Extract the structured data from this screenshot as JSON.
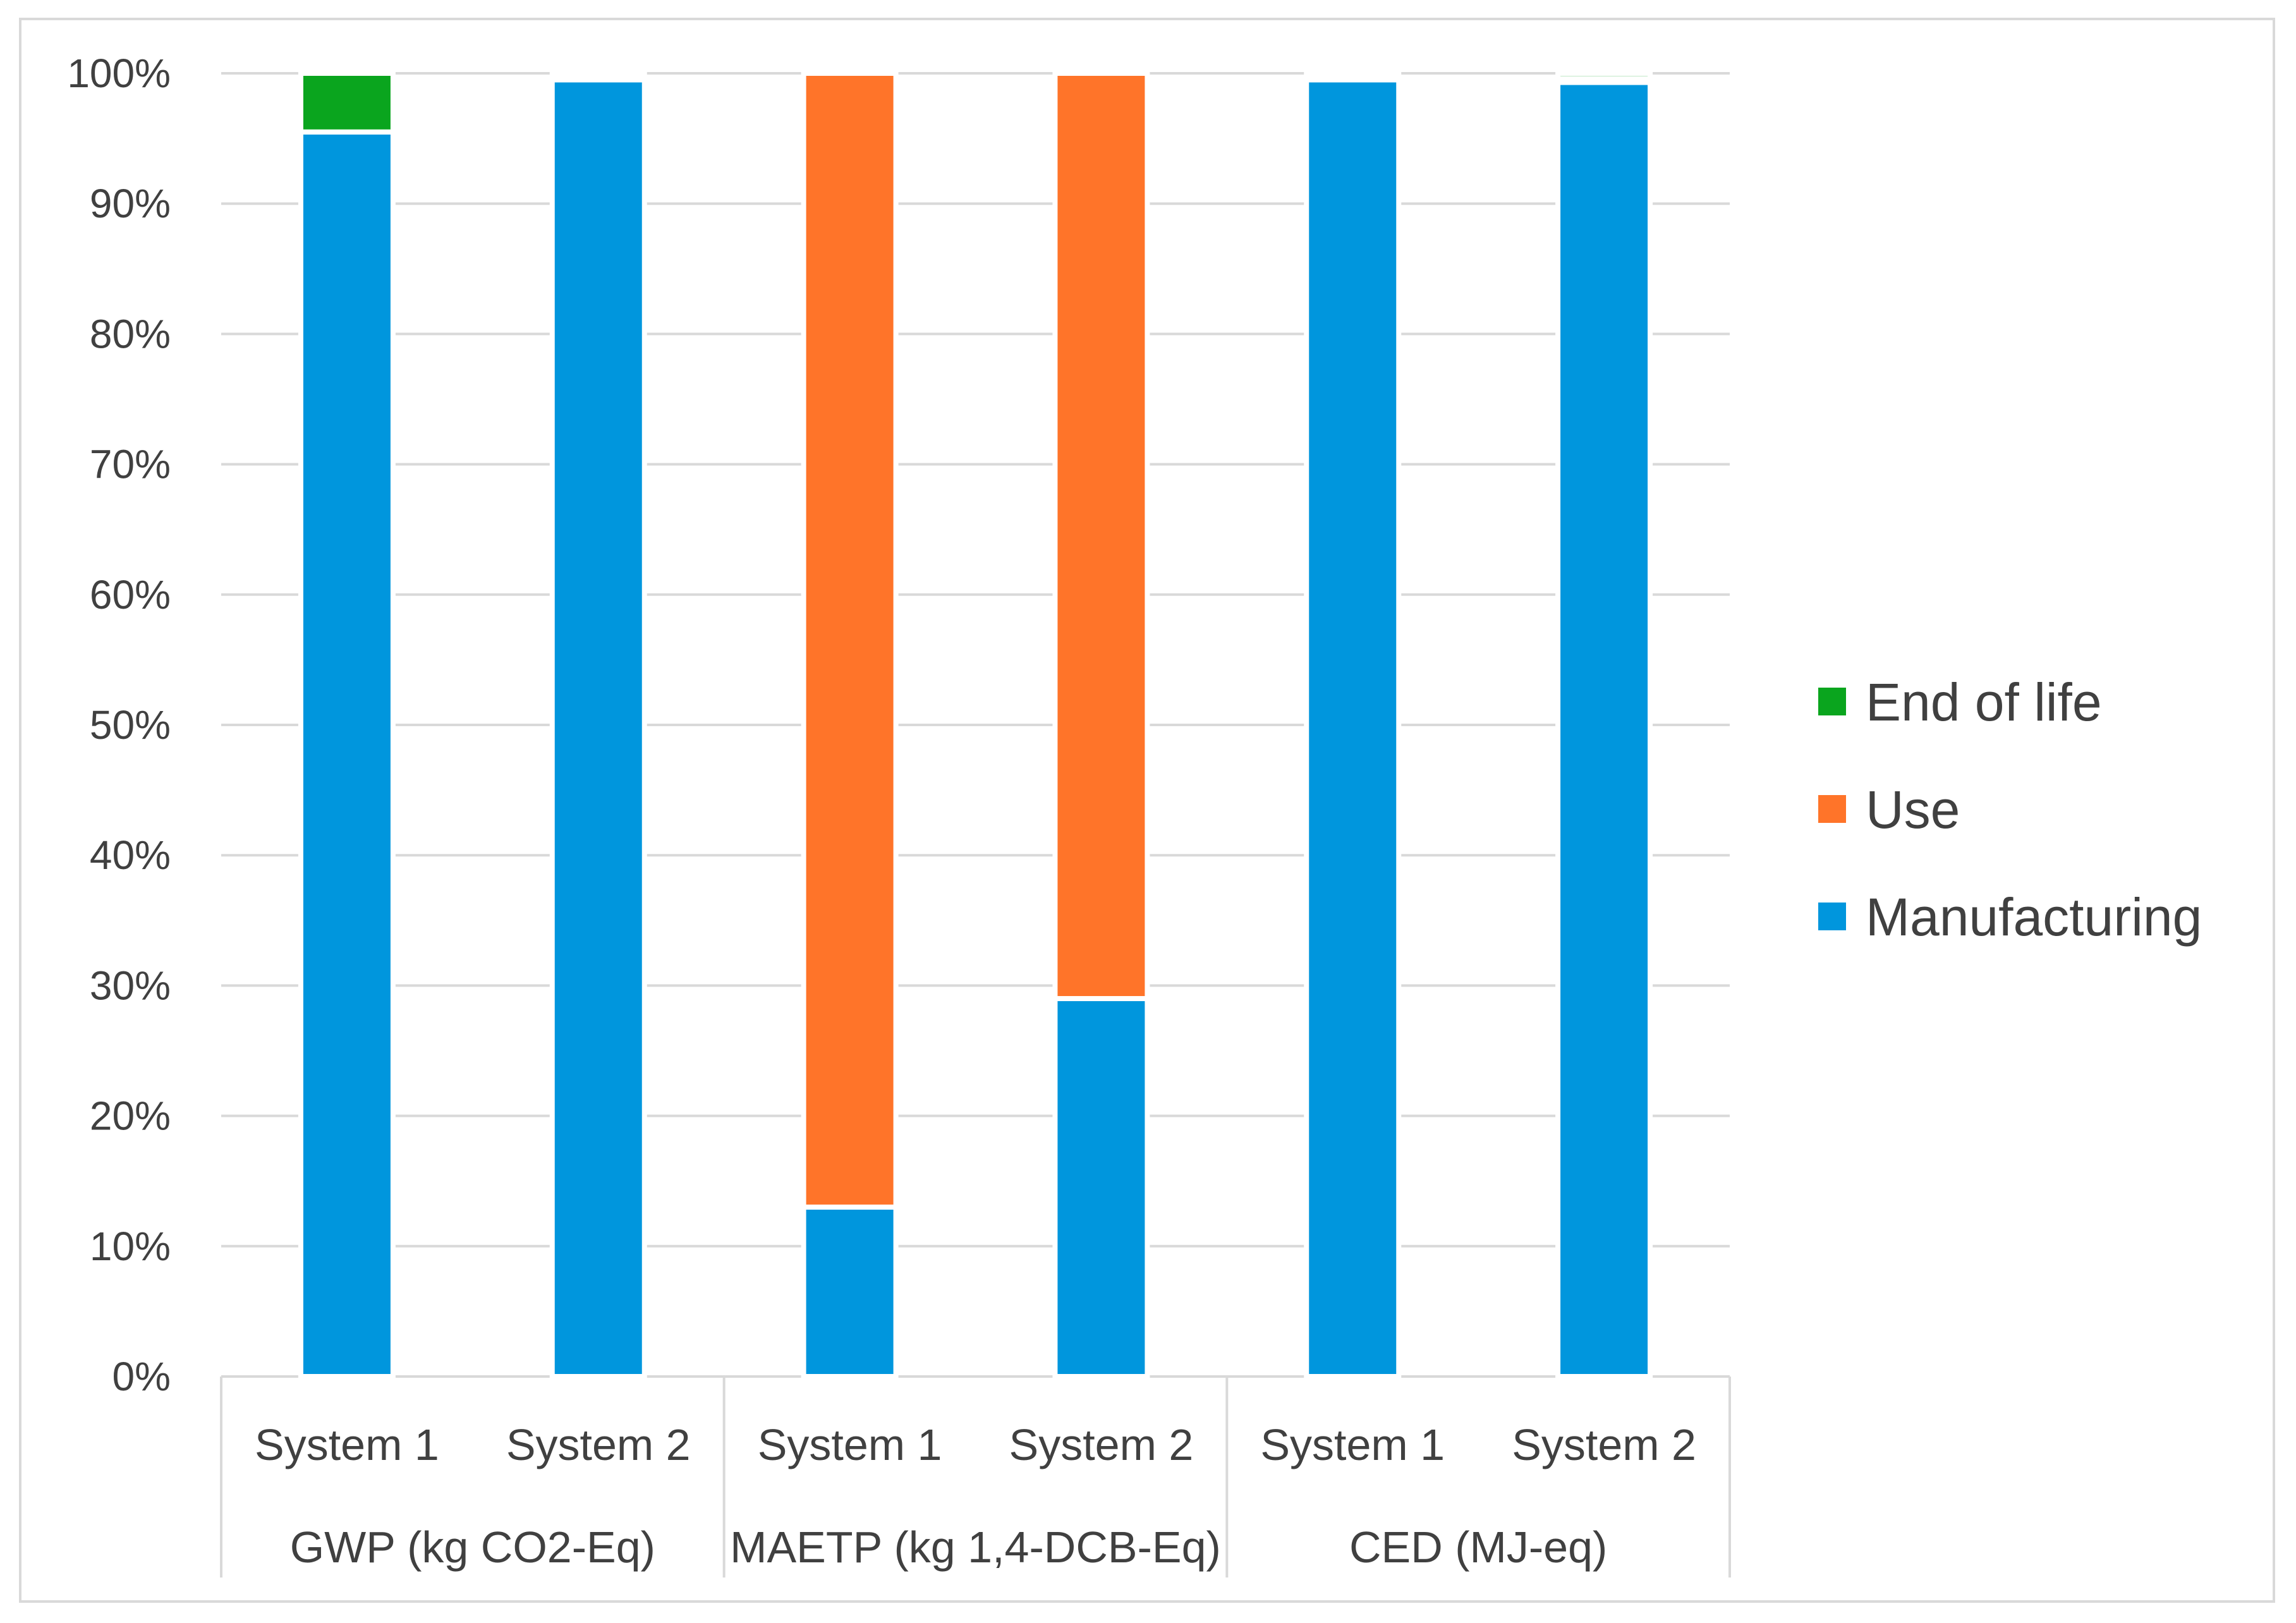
{
  "chart_data": {
    "type": "bar",
    "stacked": true,
    "percent": true,
    "title": "",
    "xlabel": "",
    "ylabel": "",
    "ylim": [
      0,
      100
    ],
    "yticks": [
      "0%",
      "10%",
      "20%",
      "30%",
      "40%",
      "50%",
      "60%",
      "70%",
      "80%",
      "90%",
      "100%"
    ],
    "grid": true,
    "legend_position": "right",
    "categories": [
      "System 1",
      "System 2",
      "System 1",
      "System 2",
      "System 1",
      "System 2"
    ],
    "groups": [
      {
        "label": "GWP (kg CO2-Eq)",
        "categories": [
          "System 1",
          "System 2"
        ]
      },
      {
        "label": "MAETP (kg 1,4-DCB-Eq)",
        "categories": [
          "System 1",
          "System 2"
        ]
      },
      {
        "label": "CED (MJ-eq)",
        "categories": [
          "System 1",
          "System 2"
        ]
      }
    ],
    "series": [
      {
        "name": "Manufacturing",
        "color": "#0096dd",
        "values": [
          95.5,
          99.5,
          13,
          29,
          99.5,
          99.3
        ]
      },
      {
        "name": "Use",
        "color": "#ff7429",
        "values": [
          0,
          0.2,
          87,
          71,
          0.2,
          0.3
        ]
      },
      {
        "name": "End of life",
        "color": "#0aa51e",
        "values": [
          4.5,
          0.3,
          0,
          0,
          0.3,
          0.4
        ]
      }
    ],
    "legend_order": [
      "End of life",
      "Use",
      "Manufacturing"
    ]
  }
}
